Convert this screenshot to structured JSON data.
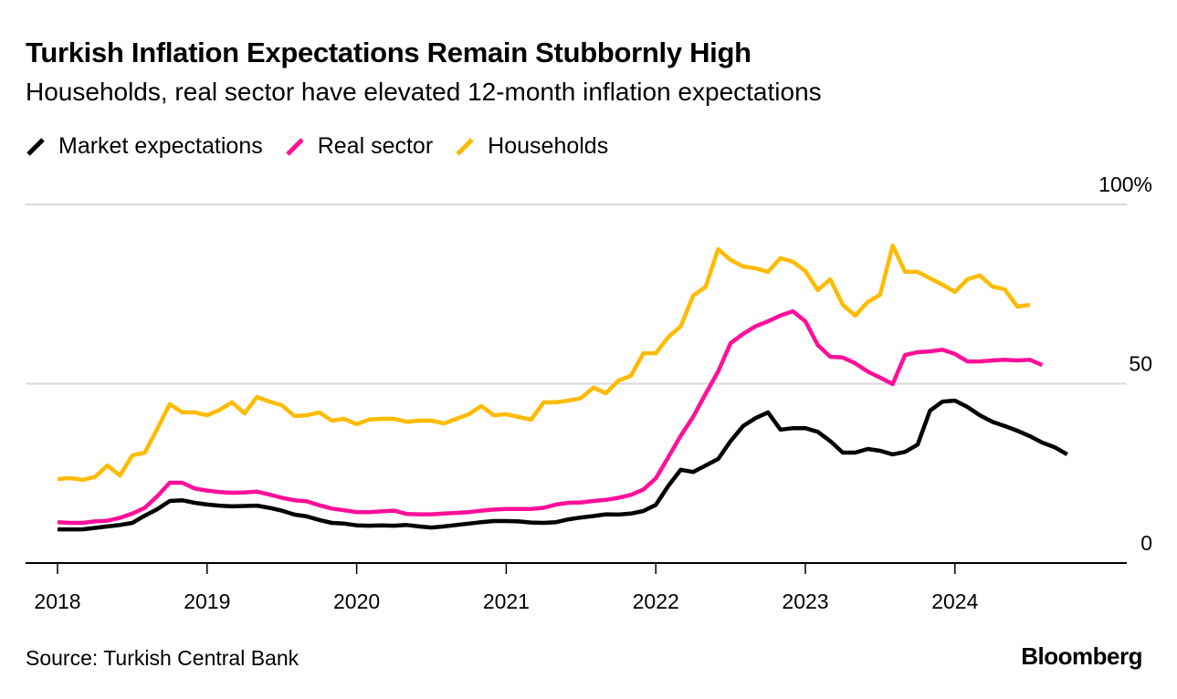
{
  "header": {
    "title": "Turkish Inflation Expectations Remain Stubbornly High",
    "subtitle": "Households, real sector have elevated 12-month inflation expectations"
  },
  "footer": {
    "source": "Source: Turkish Central Bank",
    "brand": "Bloomberg"
  },
  "chart_data": {
    "type": "line",
    "title": "Turkish Inflation Expectations Remain Stubbornly High",
    "subtitle": "Households, real sector have elevated 12-month inflation expectations",
    "xlabel": "",
    "ylabel": "",
    "x_start": "2018-01",
    "x_frequency": "monthly",
    "x_range": [
      "2017-10",
      "2025-02"
    ],
    "x_ticks": [
      "2018",
      "2019",
      "2020",
      "2021",
      "2022",
      "2023",
      "2024"
    ],
    "ylim": [
      0,
      100
    ],
    "y_ticks": [
      0,
      50,
      100
    ],
    "y_tick_labels": [
      "0",
      "50",
      "100%"
    ],
    "y_axis_side": "right",
    "grid": true,
    "legend_position": "top-left",
    "series": [
      {
        "name": "Market expectations",
        "color": "#000000",
        "values": [
          9.4,
          9.4,
          9.4,
          9.8,
          10.2,
          10.6,
          11.2,
          13.2,
          15,
          17.3,
          17.5,
          16.8,
          16.3,
          16,
          15.8,
          15.9,
          16,
          15.4,
          14.6,
          13.5,
          13,
          12,
          11.2,
          11,
          10.5,
          10.4,
          10.5,
          10.4,
          10.6,
          10.2,
          9.9,
          10.2,
          10.6,
          11,
          11.4,
          11.7,
          11.7,
          11.6,
          11.3,
          11.2,
          11.4,
          12.2,
          12.7,
          13.1,
          13.6,
          13.5,
          13.8,
          14.5,
          16.2,
          21.5,
          26,
          25.4,
          27.2,
          29,
          34,
          38.2,
          40.4,
          42,
          37.2,
          37.6,
          37.6,
          36.6,
          34,
          30.8,
          30.8,
          31.8,
          31.3,
          30.3,
          31,
          33,
          42.5,
          45,
          45.3,
          43.5,
          41.2,
          39.4,
          38.2,
          36.9,
          35.4,
          33.6,
          32.3,
          30.3
        ]
      },
      {
        "name": "Real sector",
        "color": "#ff0f9a",
        "values": [
          11.4,
          11.2,
          11.2,
          11.6,
          11.8,
          12.6,
          13.8,
          15.4,
          18.6,
          22.4,
          22.4,
          20.8,
          20.2,
          19.8,
          19.6,
          19.7,
          19.9,
          19.1,
          18.2,
          17.5,
          17.2,
          16.1,
          15.2,
          14.7,
          14.2,
          14.2,
          14.4,
          14.6,
          13.7,
          13.6,
          13.6,
          13.8,
          14,
          14.2,
          14.6,
          14.9,
          15.1,
          15.1,
          15.1,
          15.4,
          16.3,
          16.8,
          16.9,
          17.3,
          17.6,
          18.2,
          19,
          20.5,
          23.6,
          29.5,
          35.5,
          40.8,
          47.2,
          53.4,
          61.3,
          63.9,
          66,
          67.4,
          69,
          70.2,
          67.4,
          60.8,
          57.5,
          57.3,
          55.7,
          53.4,
          51.7,
          49.9,
          58,
          58.8,
          59,
          59.5,
          58.3,
          56.2,
          56.2,
          56.5,
          56.7,
          56.5,
          56.7,
          55.2
        ]
      },
      {
        "name": "Households",
        "color": "#ffbb00",
        "values": [
          23.4,
          23.7,
          23.2,
          24,
          27.2,
          24.4,
          30,
          30.8,
          37.4,
          44.3,
          42,
          42,
          41.2,
          42.7,
          44.8,
          41.7,
          46.3,
          45,
          44,
          41,
          41.2,
          42,
          39.7,
          40.2,
          38.7,
          40,
          40.2,
          40.2,
          39.4,
          39.7,
          39.7,
          38.9,
          40.2,
          41.5,
          43.8,
          41.2,
          41.5,
          40.7,
          40,
          44.8,
          44.8,
          45.3,
          46,
          48.9,
          47.3,
          50.9,
          52.2,
          58.5,
          58.5,
          63,
          66,
          74.6,
          77,
          87.5,
          84.5,
          82.7,
          82.2,
          81.2,
          85,
          84,
          81.4,
          76.1,
          79.1,
          72,
          69,
          72.8,
          74.8,
          88.5,
          81.2,
          81.2,
          79.4,
          77.6,
          75.6,
          79.1,
          80.2,
          77.1,
          76.3,
          71.5,
          72
        ]
      }
    ]
  }
}
